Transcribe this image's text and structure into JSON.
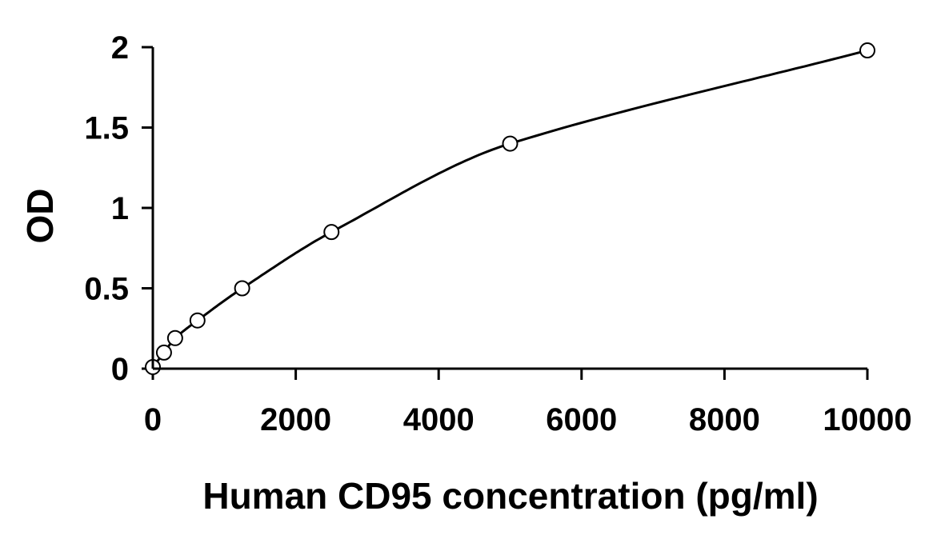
{
  "chart_data": {
    "type": "scatter",
    "title": "",
    "xlabel": "Human CD95 concentration (pg/ml)",
    "ylabel": "OD",
    "xlim": [
      0,
      10000
    ],
    "ylim": [
      0,
      2
    ],
    "x_ticks": [
      "0",
      "2000",
      "4000",
      "6000",
      "8000",
      "10000"
    ],
    "y_ticks": [
      "0",
      "0.5",
      "1",
      "1.5",
      "2"
    ],
    "grid": false,
    "legend": "none",
    "trendline": "smooth fitted curve",
    "series": [
      {
        "x": [
          0,
          156,
          312,
          625,
          1250,
          2500,
          5000,
          10000
        ],
        "y": [
          0.01,
          0.1,
          0.19,
          0.3,
          0.5,
          0.85,
          1.4,
          1.98
        ]
      }
    ],
    "colors": {
      "axis": "#000000",
      "marker_fill": "#ffffff",
      "marker_stroke": "#000000",
      "line": "#000000"
    }
  }
}
